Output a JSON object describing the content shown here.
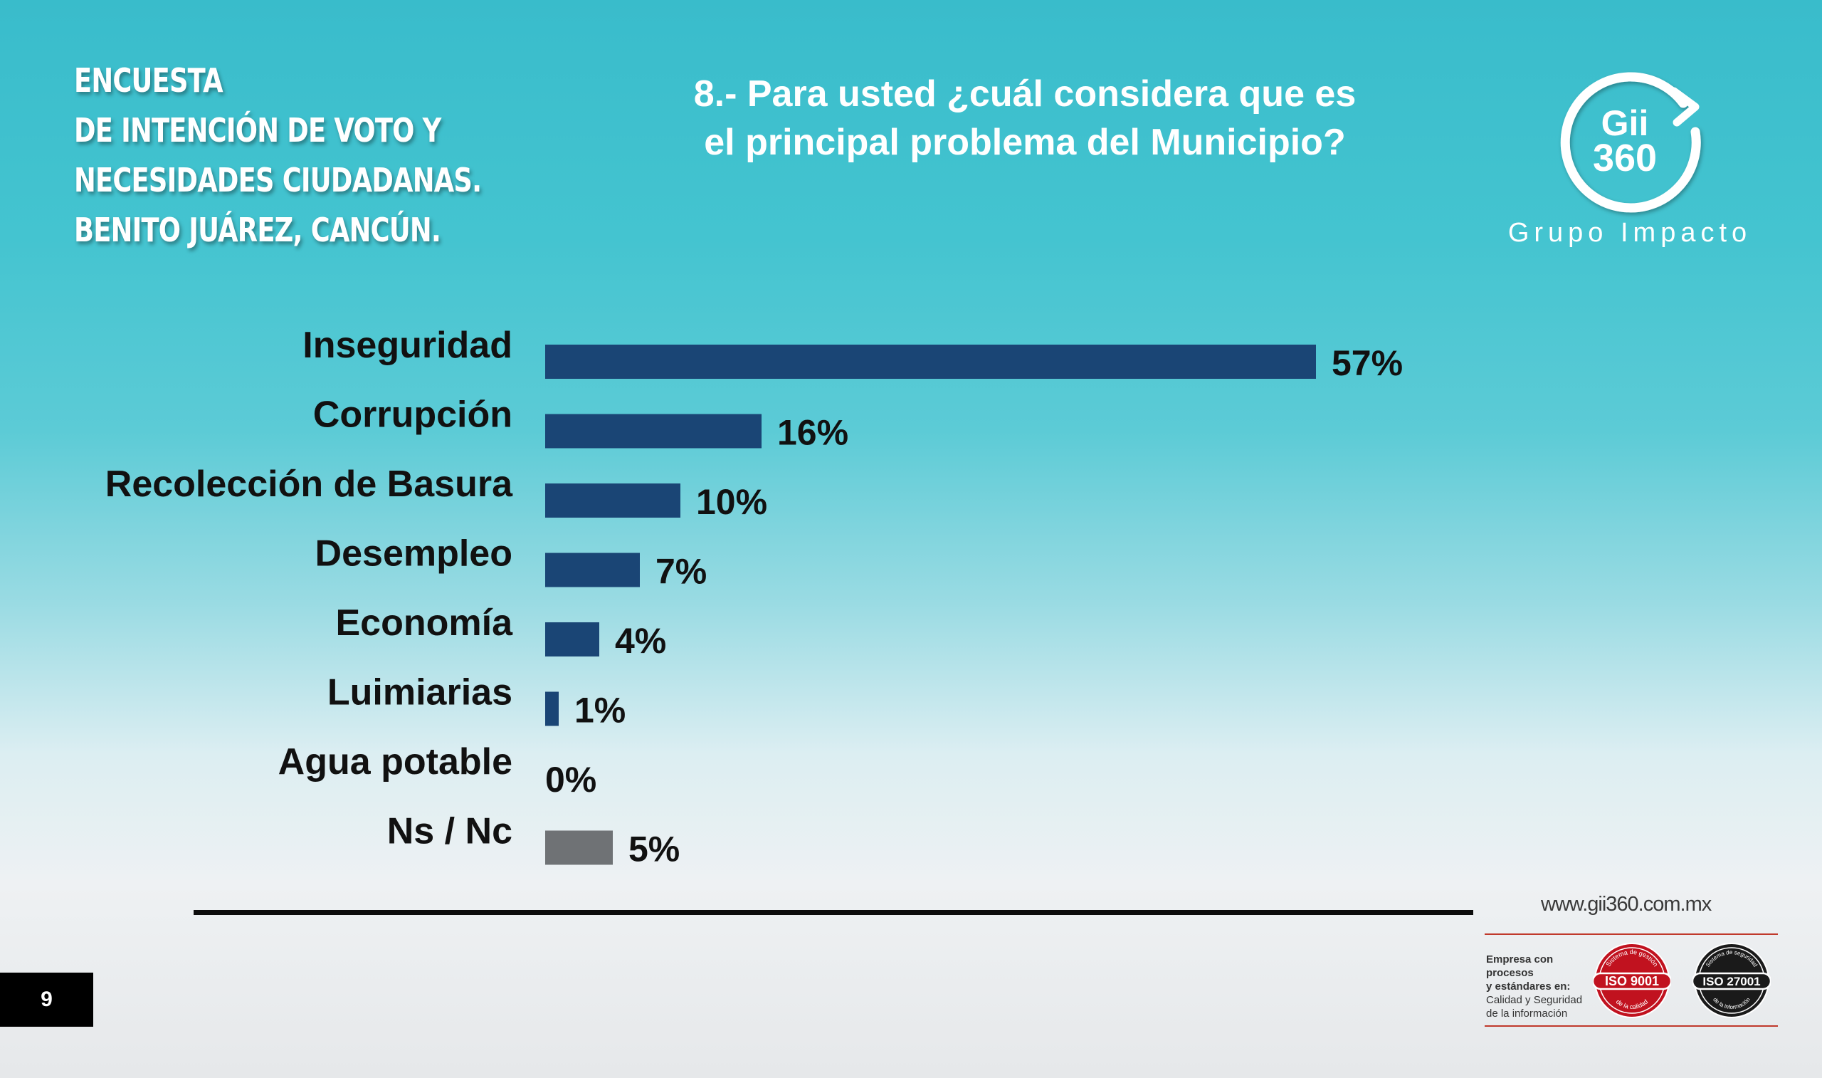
{
  "survey_title": {
    "lines": [
      "ENCUESTA",
      "DE INTENCIÓN DE VOTO Y",
      "NECESIDADES CIUDADANAS.",
      "BENITO JUÁREZ, CANCÚN."
    ]
  },
  "question": {
    "lines": [
      "8.- Para usted ¿cuál considera que es",
      "el principal problema del Municipio?"
    ]
  },
  "logo": {
    "mark_line1": "Gii",
    "mark_line2": "360",
    "name": "Grupo Impacto",
    "icon": "circular-arrow-logo-icon"
  },
  "chart_data": {
    "type": "bar",
    "orientation": "horizontal",
    "categories": [
      "Inseguridad",
      "Corrupción",
      "Recolección de Basura",
      "Desempleo",
      "Economía",
      "Luimiarias",
      "Agua potable",
      "Ns / Nc"
    ],
    "values": [
      57,
      16,
      10,
      7,
      4,
      1,
      0,
      5
    ],
    "value_labels": [
      "57%",
      "16%",
      "10%",
      "7%",
      "4%",
      "1%",
      "0%",
      "5%"
    ],
    "unit": "%",
    "colors": [
      "#1a4575",
      "#1a4575",
      "#1a4575",
      "#1a4575",
      "#1a4575",
      "#1a4575",
      "#1a4575",
      "#6f7275"
    ],
    "grid": false,
    "legend": "none"
  },
  "footer": {
    "website": "www.gii360.com.mx",
    "cert_text_bold": [
      "Empresa con procesos",
      "y estándares en:"
    ],
    "cert_text": [
      "Calidad y Seguridad",
      "de la información"
    ],
    "iso9001": {
      "label": "ISO 9001",
      "top": "Sistema de gestión",
      "bottom": "de la calidad",
      "color": "#c1121f"
    },
    "iso27001": {
      "label": "ISO 27001",
      "top": "Sistema de seguridad",
      "bottom": "de la información",
      "color": "#1a1a1a"
    }
  },
  "page_number": "9"
}
